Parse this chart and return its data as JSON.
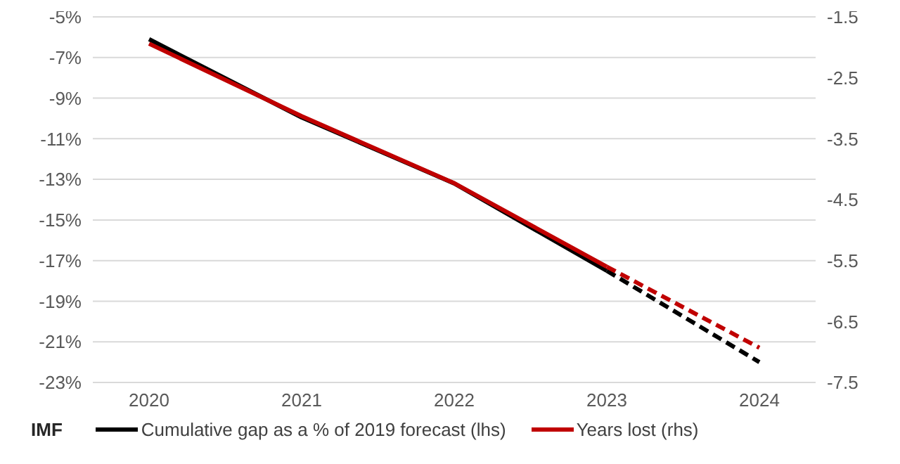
{
  "chart_data": {
    "type": "line",
    "categories": [
      "2020",
      "2021",
      "2022",
      "2023",
      "2024"
    ],
    "series": [
      {
        "name": "Cumulative gap as a % of 2019 forecast (lhs)",
        "color": "#000000",
        "values": [
          -6.1,
          -9.95,
          -13.2,
          -17.5,
          null
        ],
        "line_style": "solid"
      },
      {
        "name": "Years lost (rhs)",
        "color": "#c00000",
        "axis": "y2",
        "values": [
          -1.94,
          -3.13,
          -4.23,
          -5.6,
          null
        ],
        "line_style": "solid"
      },
      {
        "color": "#000000",
        "values": [
          null,
          null,
          null,
          -17.5,
          -22.0
        ],
        "line_style": "dashed"
      },
      {
        "color": "#c00000",
        "axis": "y2",
        "values": [
          null,
          null,
          null,
          -5.6,
          -6.93
        ],
        "line_style": "dashed"
      }
    ],
    "ylim": [
      -23,
      -5
    ],
    "yticks": [
      {
        "value": -5,
        "label": "-5%"
      },
      {
        "value": -7,
        "label": "-7%"
      },
      {
        "value": -9,
        "label": "-9%"
      },
      {
        "value": -11,
        "label": "-11%"
      },
      {
        "value": -13,
        "label": "-13%"
      },
      {
        "value": -15,
        "label": "-15%"
      },
      {
        "value": -17,
        "label": "-17%"
      },
      {
        "value": -19,
        "label": "-19%"
      },
      {
        "value": -21,
        "label": "-21%"
      },
      {
        "value": -23,
        "label": "-23%"
      }
    ],
    "y2lim": [
      -7.5,
      -1.5
    ],
    "y2ticks": [
      -1.5,
      -2.5,
      -3.5,
      -4.5,
      -5.5,
      -6.5,
      -7.5
    ],
    "grid": "y",
    "legend": "bottom",
    "marker": "none",
    "annotations": [
      "IMF"
    ]
  }
}
